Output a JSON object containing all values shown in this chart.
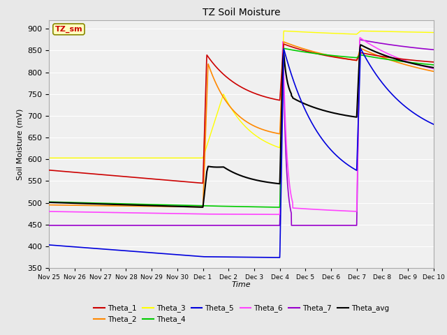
{
  "title": "TZ Soil Moisture",
  "xlabel": "Time",
  "ylabel": "Soil Moisture (mV)",
  "ylim": [
    350,
    920
  ],
  "yticks": [
    350,
    400,
    450,
    500,
    550,
    600,
    650,
    700,
    750,
    800,
    850,
    900
  ],
  "legend_label": "TZ_sm",
  "fig_bg": "#e8e8e8",
  "plot_bg": "#f0f0f0",
  "grid_color": "#ffffff",
  "line_colors": {
    "Theta_1": "#cc0000",
    "Theta_2": "#ff8800",
    "Theta_3": "#ffff00",
    "Theta_4": "#00cc00",
    "Theta_5": "#0000dd",
    "Theta_6": "#ff44ff",
    "Theta_7": "#9900cc",
    "Theta_avg": "#000000"
  },
  "e1": 6.0,
  "e2": 9.0,
  "e3": 12.0,
  "N": 2000
}
